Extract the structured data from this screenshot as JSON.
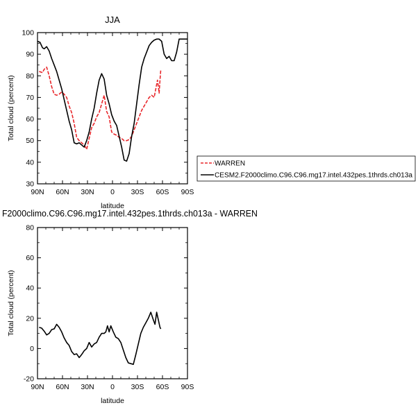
{
  "chart_data": [
    {
      "type": "line",
      "title": "JJA",
      "xlabel": "latitude",
      "ylabel": "Total cloud (percent)",
      "xlim": [
        -90,
        90
      ],
      "ylim": [
        30,
        100
      ],
      "x_ticks": [
        -90,
        -60,
        -30,
        0,
        30,
        60,
        90
      ],
      "x_tick_labels": [
        "90N",
        "60N",
        "30N",
        "0",
        "30S",
        "60S",
        "90S"
      ],
      "y_ticks": [
        30,
        40,
        50,
        60,
        70,
        80,
        90,
        100
      ],
      "y_tick_labels": [
        "30",
        "40",
        "50",
        "60",
        "70",
        "80",
        "90",
        "100"
      ],
      "legend": {
        "placement": "right",
        "entries": [
          {
            "label": "WARREN",
            "color": "#e8262a",
            "dash": "dashed"
          },
          {
            "label": "CESM2.F2000climo.C96.C96.mg17.intel.432pes.1thrds.ch013a",
            "color": "#000000",
            "dash": "solid"
          }
        ]
      },
      "series": [
        {
          "name": "WARREN",
          "color": "#e8262a",
          "dash": "dashed",
          "x": [
            -88,
            -84,
            -82,
            -79,
            -76,
            -73,
            -70,
            -67,
            -64,
            -61,
            -58,
            -55,
            -52,
            -49,
            -46,
            -43,
            -40,
            -37,
            -34,
            -31,
            -28,
            -25,
            -22,
            -19,
            -16,
            -13,
            -10,
            -7,
            -4,
            -1,
            2,
            5,
            8,
            11,
            14,
            17,
            20,
            23,
            26,
            29,
            32,
            35,
            38,
            41,
            44,
            47,
            50,
            52,
            54,
            55,
            56,
            57,
            58
          ],
          "values": [
            82,
            81.5,
            83,
            84,
            80,
            75,
            71.5,
            71,
            71.5,
            72.5,
            71.5,
            70,
            66,
            63,
            58,
            51.5,
            50,
            49,
            48,
            46,
            51,
            56,
            58,
            61,
            63,
            67,
            71,
            63.5,
            61,
            54,
            53,
            52.5,
            51.5,
            51,
            50,
            50,
            50.5,
            52,
            55,
            58,
            61,
            64,
            66,
            68,
            70,
            71,
            70,
            74,
            78,
            75,
            72,
            78,
            83
          ]
        },
        {
          "name": "CESM2.F2000climo.C96.C96.mg17.intel.432pes.1thrds.ch013a",
          "color": "#000000",
          "dash": "solid",
          "x": [
            -90,
            -87,
            -84,
            -82,
            -79,
            -76,
            -73,
            -70,
            -67,
            -64,
            -61,
            -58,
            -55,
            -52,
            -49,
            -46,
            -43,
            -40,
            -37,
            -34,
            -31,
            -28,
            -25,
            -22,
            -19,
            -16,
            -13,
            -10,
            -7,
            -4,
            -1,
            2,
            5,
            8,
            11,
            14,
            17,
            20,
            23,
            26,
            29,
            32,
            35,
            38,
            41,
            44,
            47,
            50,
            53,
            56,
            59,
            62,
            65,
            68,
            71,
            74,
            77,
            80,
            83,
            86,
            88,
            90
          ],
          "values": [
            96,
            95.5,
            93,
            92.5,
            93.5,
            91.5,
            88,
            85,
            82,
            78,
            74,
            69,
            64,
            59,
            55,
            49,
            48.5,
            49,
            48,
            47,
            50,
            54,
            60,
            65,
            72,
            78,
            81,
            78.5,
            71,
            67,
            62,
            59,
            57,
            52,
            47,
            41,
            40.5,
            44,
            52,
            58,
            67,
            76,
            84,
            88,
            91,
            94,
            95.5,
            96.5,
            97,
            97,
            96,
            90,
            88,
            89,
            87,
            87,
            91,
            97,
            97,
            97,
            97,
            97
          ]
        }
      ]
    },
    {
      "type": "line",
      "title": "F2000climo.C96.C96.mg17.intel.432pes.1thrds.ch013a - WARREN",
      "xlabel": "latitude",
      "ylabel": "Total cloud (percent)",
      "xlim": [
        -90,
        90
      ],
      "ylim": [
        -20,
        80
      ],
      "x_ticks": [
        -90,
        -60,
        -30,
        0,
        30,
        60,
        90
      ],
      "x_tick_labels": [
        "90N",
        "60N",
        "30N",
        "0",
        "30S",
        "60S",
        "90S"
      ],
      "y_ticks": [
        -20,
        0,
        20,
        40,
        60,
        80
      ],
      "y_tick_labels": [
        "-20",
        "0",
        "20",
        "40",
        "60",
        "80"
      ],
      "series": [
        {
          "color": "#000000",
          "dash": "solid",
          "x": [
            -88,
            -85,
            -82,
            -79,
            -76,
            -73,
            -70,
            -67,
            -64,
            -61,
            -58,
            -55,
            -52,
            -49,
            -46,
            -43,
            -40,
            -37,
            -34,
            -31,
            -28,
            -25,
            -22,
            -19,
            -16,
            -13,
            -10,
            -8,
            -6,
            -4,
            -2,
            1,
            4,
            7,
            10,
            13,
            16,
            19,
            22,
            25,
            28,
            31,
            34,
            37,
            40,
            43,
            46,
            49,
            51,
            53,
            55,
            57,
            58
          ],
          "values": [
            14,
            13.5,
            11.5,
            9,
            10,
            12.5,
            13,
            16,
            14,
            11,
            7,
            4,
            2,
            -2,
            -4,
            -3.5,
            -6,
            -4,
            -1.5,
            0,
            4,
            1,
            3,
            4,
            7.5,
            10,
            10,
            11,
            15,
            11,
            15,
            11,
            7.5,
            6.5,
            4,
            -1,
            -6,
            -9.5,
            -10,
            -10.5,
            -4,
            3,
            10,
            14,
            17,
            20,
            24,
            19,
            16,
            24,
            19,
            14,
            13
          ]
        }
      ]
    }
  ]
}
